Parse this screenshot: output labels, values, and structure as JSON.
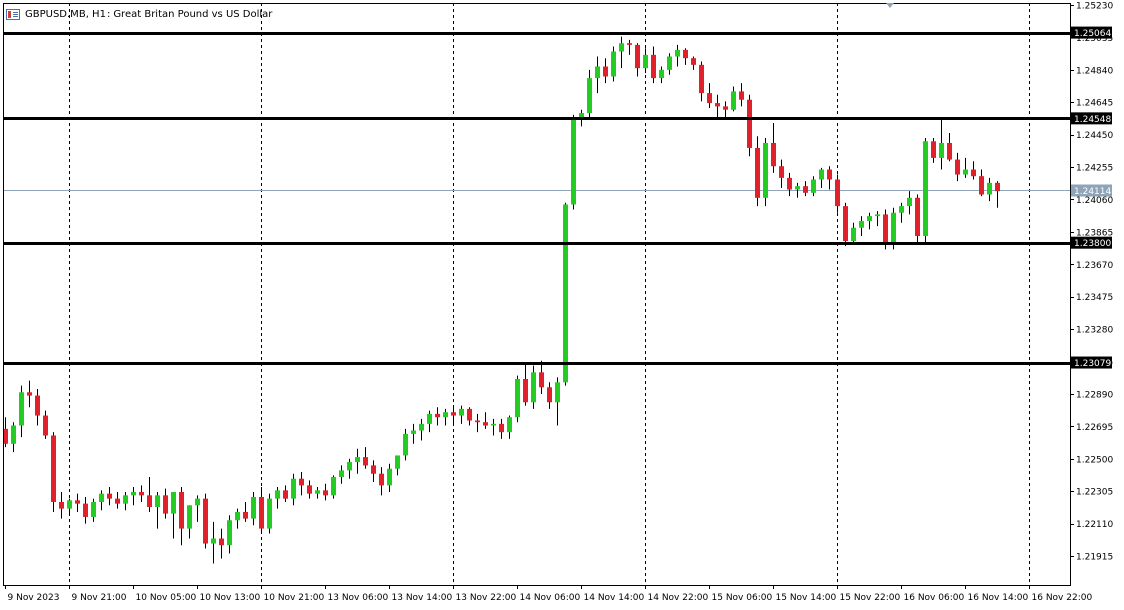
{
  "header": {
    "symbol": "GBPUSD.MB",
    "timeframe": "H1",
    "description": "Great Britan Pound vs US Dollar",
    "icon": "chart-window-icon"
  },
  "colors": {
    "bull": "#22cc22",
    "bear": "#e0202a",
    "wick": "#000000",
    "grid": "#000000",
    "bid_line": "#8fa4b8",
    "hline": "#000000",
    "label_bg": "#000000",
    "label_text": "#ffffff",
    "bid_label_bg": "#8fa4b8"
  },
  "chart_data": {
    "type": "candlestick",
    "symbol": "GBPUSD.MB",
    "timeframe": "H1",
    "ylim": [
      1.2182,
      1.2523
    ],
    "y_ticks": [
      "1.25230",
      "1.25035",
      "1.24840",
      "1.24645",
      "1.24450",
      "1.24255",
      "1.24060",
      "1.23865",
      "1.23670",
      "1.23475",
      "1.23280",
      "1.23085",
      "1.22890",
      "1.22695",
      "1.22500",
      "1.22305",
      "1.22110",
      "1.21915"
    ],
    "x_labels": [
      "9 Nov 2023",
      "9 Nov 21:00",
      "10 Nov 05:00",
      "10 Nov 13:00",
      "10 Nov 21:00",
      "13 Nov 06:00",
      "13 Nov 14:00",
      "13 Nov 22:00",
      "14 Nov 06:00",
      "14 Nov 14:00",
      "14 Nov 22:00",
      "15 Nov 06:00",
      "15 Nov 14:00",
      "15 Nov 22:00",
      "16 Nov 06:00",
      "16 Nov 14:00",
      "16 Nov 22:00"
    ],
    "period_separator_labels": [
      "9 Nov 21:00",
      "10 Nov 21:00",
      "13 Nov 22:00",
      "14 Nov 22:00",
      "15 Nov 22:00",
      "16 Nov 22:00"
    ],
    "horizontal_levels": [
      "1.25064",
      "1.24548",
      "1.23800",
      "1.23079"
    ],
    "bid_price": "1.24114",
    "candles": [
      [
        1.2268,
        1.2275,
        1.2257,
        1.2259
      ],
      [
        1.2259,
        1.2272,
        1.2254,
        1.227
      ],
      [
        1.227,
        1.2294,
        1.2263,
        1.229
      ],
      [
        1.229,
        1.2297,
        1.2281,
        1.2288
      ],
      [
        1.2288,
        1.2292,
        1.227,
        1.2276
      ],
      [
        1.2276,
        1.2279,
        1.2262,
        1.2264
      ],
      [
        1.2264,
        1.2266,
        1.2218,
        1.2224
      ],
      [
        1.2224,
        1.223,
        1.2214,
        1.222
      ],
      [
        1.222,
        1.2226,
        1.2216,
        1.2225
      ],
      [
        1.2225,
        1.2229,
        1.2218,
        1.2223
      ],
      [
        1.2223,
        1.2227,
        1.2211,
        1.2215
      ],
      [
        1.2215,
        1.2226,
        1.2212,
        1.2224
      ],
      [
        1.2224,
        1.2231,
        1.2219,
        1.2229
      ],
      [
        1.2229,
        1.2233,
        1.2222,
        1.2226
      ],
      [
        1.2226,
        1.223,
        1.222,
        1.2223
      ],
      [
        1.2223,
        1.223,
        1.2219,
        1.2228
      ],
      [
        1.2228,
        1.2233,
        1.2222,
        1.223
      ],
      [
        1.223,
        1.2234,
        1.2224,
        1.2228
      ],
      [
        1.2228,
        1.2239,
        1.2218,
        1.2221
      ],
      [
        1.2221,
        1.223,
        1.2208,
        1.2228
      ],
      [
        1.2228,
        1.2232,
        1.2214,
        1.2217
      ],
      [
        1.2217,
        1.223,
        1.2202,
        1.223
      ],
      [
        1.223,
        1.2233,
        1.2198,
        1.2208
      ],
      [
        1.2208,
        1.2222,
        1.2202,
        1.2222
      ],
      [
        1.2222,
        1.2228,
        1.2212,
        1.2226
      ],
      [
        1.2226,
        1.2229,
        1.2196,
        1.2199
      ],
      [
        1.2199,
        1.2212,
        1.2187,
        1.2202
      ],
      [
        1.2202,
        1.2208,
        1.219,
        1.2198
      ],
      [
        1.2198,
        1.2216,
        1.2193,
        1.2213
      ],
      [
        1.2213,
        1.222,
        1.2208,
        1.2218
      ],
      [
        1.2218,
        1.2224,
        1.2212,
        1.2214
      ],
      [
        1.2214,
        1.223,
        1.221,
        1.2227
      ],
      [
        1.2227,
        1.2233,
        1.2205,
        1.2208
      ],
      [
        1.2208,
        1.2229,
        1.2205,
        1.2226
      ],
      [
        1.2226,
        1.2233,
        1.222,
        1.2231
      ],
      [
        1.2231,
        1.2234,
        1.2224,
        1.2226
      ],
      [
        1.2226,
        1.2241,
        1.2222,
        1.2238
      ],
      [
        1.2238,
        1.2242,
        1.2228,
        1.2234
      ],
      [
        1.2234,
        1.2237,
        1.2226,
        1.2229
      ],
      [
        1.2229,
        1.2233,
        1.2226,
        1.2231
      ],
      [
        1.2231,
        1.2235,
        1.2225,
        1.2228
      ],
      [
        1.2228,
        1.224,
        1.2226,
        1.2239
      ],
      [
        1.2239,
        1.2246,
        1.2235,
        1.2243
      ],
      [
        1.2243,
        1.225,
        1.2238,
        1.2248
      ],
      [
        1.2248,
        1.2256,
        1.2241,
        1.2251
      ],
      [
        1.2251,
        1.2257,
        1.2244,
        1.2246
      ],
      [
        1.2246,
        1.2249,
        1.2236,
        1.2241
      ],
      [
        1.2241,
        1.2245,
        1.2228,
        1.2234
      ],
      [
        1.2234,
        1.2247,
        1.223,
        1.2244
      ],
      [
        1.2244,
        1.2252,
        1.224,
        1.2252
      ],
      [
        1.2252,
        1.2268,
        1.2249,
        1.2265
      ],
      [
        1.2265,
        1.2271,
        1.2259,
        1.2267
      ],
      [
        1.2267,
        1.2274,
        1.2261,
        1.2271
      ],
      [
        1.2271,
        1.2279,
        1.2266,
        1.2277
      ],
      [
        1.2277,
        1.2281,
        1.227,
        1.2275
      ],
      [
        1.2275,
        1.228,
        1.227,
        1.2278
      ],
      [
        1.2278,
        1.2281,
        1.2271,
        1.2276
      ],
      [
        1.2276,
        1.2282,
        1.2271,
        1.228
      ],
      [
        1.228,
        1.2281,
        1.227,
        1.2273
      ],
      [
        1.2273,
        1.2277,
        1.2266,
        1.2272
      ],
      [
        1.2272,
        1.2278,
        1.2268,
        1.227
      ],
      [
        1.227,
        1.2274,
        1.2264,
        1.2271
      ],
      [
        1.2271,
        1.2274,
        1.2262,
        1.2266
      ],
      [
        1.2266,
        1.2276,
        1.2262,
        1.2275
      ],
      [
        1.2275,
        1.23,
        1.2272,
        1.2298
      ],
      [
        1.2298,
        1.2308,
        1.2282,
        1.2284
      ],
      [
        1.2284,
        1.2306,
        1.228,
        1.2302
      ],
      [
        1.2302,
        1.2309,
        1.2289,
        1.2293
      ],
      [
        1.2293,
        1.2296,
        1.228,
        1.2284
      ],
      [
        1.2284,
        1.2299,
        1.227,
        1.2296
      ],
      [
        1.2296,
        1.2404,
        1.2294,
        1.2403
      ],
      [
        1.2403,
        1.2457,
        1.24,
        1.2455
      ],
      [
        1.2455,
        1.246,
        1.245,
        1.2458
      ],
      [
        1.2458,
        1.2484,
        1.2455,
        1.2479
      ],
      [
        1.2479,
        1.2492,
        1.247,
        1.2486
      ],
      [
        1.2486,
        1.2491,
        1.2476,
        1.248
      ],
      [
        1.248,
        1.2498,
        1.2477,
        1.2495
      ],
      [
        1.2495,
        1.2504,
        1.2485,
        1.25
      ],
      [
        1.25,
        1.2502,
        1.2493,
        1.2499
      ],
      [
        1.2499,
        1.25,
        1.248,
        1.2485
      ],
      [
        1.2485,
        1.2497,
        1.2482,
        1.2493
      ],
      [
        1.2493,
        1.2498,
        1.2476,
        1.2479
      ],
      [
        1.2479,
        1.2486,
        1.2476,
        1.2484
      ],
      [
        1.2484,
        1.2494,
        1.2481,
        1.2492
      ],
      [
        1.2492,
        1.2499,
        1.2486,
        1.2496
      ],
      [
        1.2496,
        1.2497,
        1.2487,
        1.2491
      ],
      [
        1.2491,
        1.2492,
        1.2484,
        1.2487
      ],
      [
        1.2487,
        1.2489,
        1.2465,
        1.247
      ],
      [
        1.247,
        1.2476,
        1.2461,
        1.2464
      ],
      [
        1.2464,
        1.2469,
        1.2455,
        1.2462
      ],
      [
        1.2462,
        1.2465,
        1.2455,
        1.246
      ],
      [
        1.246,
        1.2474,
        1.2459,
        1.2471
      ],
      [
        1.2471,
        1.2476,
        1.2462,
        1.2466
      ],
      [
        1.2466,
        1.2469,
        1.2432,
        1.2437
      ],
      [
        1.2437,
        1.2444,
        1.2402,
        1.2407
      ],
      [
        1.2407,
        1.2443,
        1.2402,
        1.244
      ],
      [
        1.244,
        1.2452,
        1.2422,
        1.2426
      ],
      [
        1.2426,
        1.243,
        1.2413,
        1.2419
      ],
      [
        1.2419,
        1.2422,
        1.2408,
        1.2412
      ],
      [
        1.2412,
        1.2416,
        1.2407,
        1.2414
      ],
      [
        1.2414,
        1.2417,
        1.2408,
        1.241
      ],
      [
        1.241,
        1.242,
        1.2408,
        1.2418
      ],
      [
        1.2418,
        1.2425,
        1.2413,
        1.2424
      ],
      [
        1.2424,
        1.2426,
        1.2412,
        1.2418
      ],
      [
        1.2418,
        1.2421,
        1.2398,
        1.2402
      ],
      [
        1.2402,
        1.2404,
        1.2378,
        1.2381
      ],
      [
        1.2381,
        1.2392,
        1.2379,
        1.2389
      ],
      [
        1.2389,
        1.2396,
        1.2384,
        1.2393
      ],
      [
        1.2393,
        1.2398,
        1.2388,
        1.2396
      ],
      [
        1.2396,
        1.2399,
        1.239,
        1.2397
      ],
      [
        1.2397,
        1.24,
        1.2376,
        1.2379
      ],
      [
        1.2379,
        1.2401,
        1.2376,
        1.2398
      ],
      [
        1.2398,
        1.2404,
        1.2392,
        1.2402
      ],
      [
        1.2402,
        1.2411,
        1.2397,
        1.2407
      ],
      [
        1.2407,
        1.2409,
        1.238,
        1.2384
      ],
      [
        1.2384,
        1.2443,
        1.238,
        1.2441
      ],
      [
        1.2441,
        1.2443,
        1.2428,
        1.2431
      ],
      [
        1.2431,
        1.2455,
        1.2424,
        1.244
      ],
      [
        1.244,
        1.2446,
        1.2429,
        1.243
      ],
      [
        1.243,
        1.2434,
        1.2417,
        1.2421
      ],
      [
        1.2421,
        1.2431,
        1.2419,
        1.2424
      ],
      [
        1.2424,
        1.2429,
        1.2418,
        1.242
      ],
      [
        1.242,
        1.2424,
        1.2408,
        1.2409
      ],
      [
        1.2409,
        1.2419,
        1.2405,
        1.2416
      ],
      [
        1.2416,
        1.2417,
        1.2401,
        1.2411
      ]
    ]
  }
}
